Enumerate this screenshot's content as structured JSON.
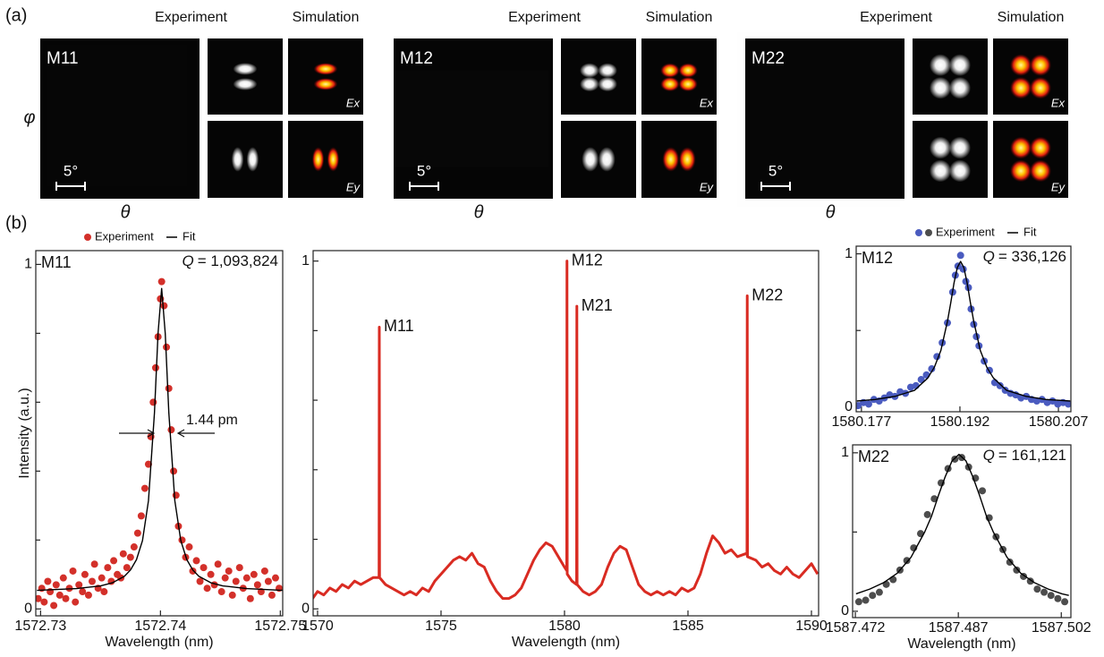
{
  "panel_a": {
    "label": "(a)",
    "y_label": "φ",
    "groups": [
      {
        "mode": "M11",
        "experiment": "Experiment",
        "simulation": "Simulation",
        "ex": "Ex",
        "ey": "Ey",
        "scale": "5°",
        "x_label": "θ"
      },
      {
        "mode": "M12",
        "experiment": "Experiment",
        "simulation": "Simulation",
        "ex": "Ex",
        "ey": "Ey",
        "scale": "5°",
        "x_label": "θ"
      },
      {
        "mode": "M22",
        "experiment": "Experiment",
        "simulation": "Simulation",
        "ex": "Ex",
        "ey": "Ey",
        "scale": "5°",
        "x_label": "θ"
      }
    ]
  },
  "panel_b_label": "(b)",
  "chart_data": [
    {
      "type": "scatter",
      "panel_label": "M11",
      "q_symbol": "Q",
      "q_text": "= 1,093,824",
      "width_label": "1.44 pm",
      "y_label": "Intensity (a.u.)",
      "x_label": "Wavelength (nm)",
      "xlim": [
        1572.7296,
        1572.7502
      ],
      "xticks": [
        1572.73,
        1572.74,
        1572.75
      ],
      "ylim": [
        -0.02,
        1.04
      ],
      "yticks": [
        0,
        1
      ],
      "yminorticks": [
        0.2,
        0.4,
        0.6,
        0.8
      ],
      "legend": "top",
      "series": [
        {
          "name": "Experiment",
          "type": "scatter",
          "color": "#d3302a",
          "x": [
            1572.7298,
            1572.7301,
            1572.7303,
            1572.7306,
            1572.7308,
            1572.7311,
            1572.7313,
            1572.7316,
            1572.7319,
            1572.7321,
            1572.7324,
            1572.7327,
            1572.7329,
            1572.7332,
            1572.7335,
            1572.7337,
            1572.734,
            1572.7343,
            1572.7345,
            1572.7348,
            1572.7351,
            1572.7353,
            1572.7356,
            1572.7359,
            1572.7361,
            1572.7364,
            1572.7367,
            1572.7369,
            1572.7372,
            1572.7375,
            1572.7378,
            1572.7381,
            1572.7384,
            1572.7387,
            1572.739,
            1572.7392,
            1572.7394,
            1572.7396,
            1572.7398,
            1572.74,
            1572.7401,
            1572.7403,
            1572.7405,
            1572.7407,
            1572.7409,
            1572.7411,
            1572.7413,
            1572.7415,
            1572.7418,
            1572.7421,
            1572.7424,
            1572.7427,
            1572.743,
            1572.7433,
            1572.7436,
            1572.7439,
            1572.7442,
            1572.7445,
            1572.7448,
            1572.7451,
            1572.7454,
            1572.7457,
            1572.746,
            1572.7463,
            1572.7466,
            1572.7469,
            1572.7472,
            1572.7475,
            1572.7478,
            1572.7481,
            1572.7484,
            1572.7487,
            1572.749,
            1572.7493,
            1572.7496,
            1572.7499
          ],
          "values": [
            0.03,
            0.06,
            0.02,
            0.08,
            0.05,
            0.01,
            0.07,
            0.04,
            0.09,
            0.03,
            0.06,
            0.11,
            0.02,
            0.07,
            0.05,
            0.1,
            0.04,
            0.08,
            0.13,
            0.06,
            0.09,
            0.05,
            0.12,
            0.08,
            0.14,
            0.1,
            0.09,
            0.16,
            0.12,
            0.15,
            0.18,
            0.22,
            0.27,
            0.35,
            0.42,
            0.5,
            0.6,
            0.7,
            0.79,
            0.9,
            0.95,
            0.88,
            0.76,
            0.64,
            0.52,
            0.4,
            0.33,
            0.24,
            0.2,
            0.15,
            0.18,
            0.11,
            0.14,
            0.08,
            0.12,
            0.06,
            0.1,
            0.07,
            0.13,
            0.05,
            0.09,
            0.11,
            0.04,
            0.08,
            0.12,
            0.06,
            0.09,
            0.03,
            0.1,
            0.07,
            0.05,
            0.11,
            0.08,
            0.04,
            0.09,
            0.06
          ]
        },
        {
          "name": "Fit",
          "type": "line",
          "color": "#000000",
          "x": [
            1572.7297,
            1572.733,
            1572.735,
            1572.736,
            1572.737,
            1572.7375,
            1572.738,
            1572.7385,
            1572.739,
            1572.7395,
            1572.7398,
            1572.7401,
            1572.7404,
            1572.7407,
            1572.7412,
            1572.7417,
            1572.7422,
            1572.7427,
            1572.7432,
            1572.7442,
            1572.7452,
            1572.7472,
            1572.7502
          ],
          "values": [
            0.054,
            0.059,
            0.067,
            0.076,
            0.095,
            0.113,
            0.143,
            0.198,
            0.314,
            0.569,
            0.8,
            0.93,
            0.8,
            0.569,
            0.314,
            0.198,
            0.143,
            0.113,
            0.095,
            0.076,
            0.067,
            0.059,
            0.054
          ]
        }
      ]
    },
    {
      "type": "line",
      "x_label": "Wavelength (nm)",
      "xlim": [
        1569.82,
        1590.29
      ],
      "xticks": [
        1570,
        1575,
        1580,
        1585,
        1590
      ],
      "ylim": [
        -0.02,
        1.03
      ],
      "yticks": [
        0,
        1
      ],
      "yminorticks": [
        0.2,
        0.4,
        0.6,
        0.8
      ],
      "annotations": [
        {
          "text": "M11",
          "x": 1572.5,
          "y": 0.81
        },
        {
          "text": "M12",
          "x": 1580.1,
          "y": 1.0
        },
        {
          "text": "M21",
          "x": 1580.5,
          "y": 0.87
        },
        {
          "text": "M22",
          "x": 1587.4,
          "y": 0.9
        }
      ],
      "series": [
        {
          "type": "line",
          "color": "#d92b22",
          "x": [
            1569.8,
            1570.0,
            1570.25,
            1570.5,
            1570.75,
            1571.0,
            1571.25,
            1571.5,
            1571.75,
            1572.0,
            1572.25,
            1572.49,
            1572.5,
            1572.51,
            1572.75,
            1573.0,
            1573.25,
            1573.5,
            1573.75,
            1574.0,
            1574.25,
            1574.5,
            1574.75,
            1575.0,
            1575.25,
            1575.5,
            1575.75,
            1576.0,
            1576.25,
            1576.5,
            1576.75,
            1577.0,
            1577.25,
            1577.5,
            1577.75,
            1578.0,
            1578.25,
            1578.5,
            1578.75,
            1579.0,
            1579.25,
            1579.5,
            1579.75,
            1580.0,
            1580.09,
            1580.1,
            1580.11,
            1580.3,
            1580.49,
            1580.5,
            1580.51,
            1580.75,
            1581.0,
            1581.25,
            1581.5,
            1581.75,
            1582.0,
            1582.25,
            1582.5,
            1582.75,
            1583.0,
            1583.25,
            1583.5,
            1583.75,
            1584.0,
            1584.25,
            1584.5,
            1584.75,
            1585.0,
            1585.25,
            1585.5,
            1585.75,
            1586.0,
            1586.25,
            1586.5,
            1586.75,
            1587.0,
            1587.39,
            1587.4,
            1587.41,
            1587.75,
            1588.0,
            1588.25,
            1588.5,
            1588.75,
            1589.0,
            1589.25,
            1589.5,
            1589.75,
            1590.0,
            1590.25
          ],
          "values": [
            0.03,
            0.05,
            0.04,
            0.06,
            0.05,
            0.07,
            0.06,
            0.08,
            0.07,
            0.08,
            0.09,
            0.09,
            0.81,
            0.09,
            0.07,
            0.06,
            0.05,
            0.04,
            0.05,
            0.04,
            0.06,
            0.05,
            0.08,
            0.1,
            0.12,
            0.14,
            0.15,
            0.14,
            0.16,
            0.13,
            0.12,
            0.08,
            0.05,
            0.03,
            0.03,
            0.04,
            0.06,
            0.1,
            0.14,
            0.17,
            0.19,
            0.18,
            0.15,
            0.12,
            0.11,
            1.0,
            0.1,
            0.08,
            0.07,
            0.87,
            0.07,
            0.05,
            0.04,
            0.05,
            0.07,
            0.12,
            0.16,
            0.18,
            0.17,
            0.12,
            0.07,
            0.05,
            0.04,
            0.05,
            0.04,
            0.05,
            0.04,
            0.06,
            0.05,
            0.06,
            0.1,
            0.16,
            0.21,
            0.19,
            0.16,
            0.17,
            0.15,
            0.16,
            0.9,
            0.15,
            0.14,
            0.12,
            0.13,
            0.11,
            0.1,
            0.12,
            0.1,
            0.09,
            0.11,
            0.13,
            0.1
          ]
        }
      ]
    },
    {
      "type": "scatter",
      "panel_label": "M12",
      "q_symbol": "Q",
      "q_text": "= 336,126",
      "xlim": [
        1580.1762,
        1580.2089
      ],
      "xticks": [
        1580.177,
        1580.192,
        1580.207
      ],
      "ylim": [
        -0.03,
        1.05
      ],
      "yticks": [
        0,
        1
      ],
      "yminorticks": [
        0.5
      ],
      "legend": "top",
      "series": [
        {
          "name": "Experiment",
          "type": "scatter",
          "color": "#4a5bbf",
          "x": [
            1580.1765,
            1580.1773,
            1580.1781,
            1580.1789,
            1580.1797,
            1580.1805,
            1580.1813,
            1580.1821,
            1580.1829,
            1580.1837,
            1580.1845,
            1580.1853,
            1580.1861,
            1580.1869,
            1580.1877,
            1580.1885,
            1580.1893,
            1580.1901,
            1580.1909,
            1580.1913,
            1580.1917,
            1580.1921,
            1580.1925,
            1580.1929,
            1580.1933,
            1580.1937,
            1580.1941,
            1580.1945,
            1580.1949,
            1580.1957,
            1580.1965,
            1580.1973,
            1580.1981,
            1580.1989,
            1580.1997,
            1580.2005,
            1580.2013,
            1580.2021,
            1580.2029,
            1580.2037,
            1580.2045,
            1580.2053,
            1580.2061,
            1580.2069,
            1580.2077,
            1580.2085
          ],
          "values": [
            0.01,
            0.03,
            0.02,
            0.05,
            0.04,
            0.06,
            0.08,
            0.07,
            0.1,
            0.09,
            0.13,
            0.14,
            0.18,
            0.21,
            0.25,
            0.33,
            0.42,
            0.55,
            0.75,
            0.86,
            0.92,
            0.99,
            0.9,
            0.82,
            0.78,
            0.64,
            0.54,
            0.46,
            0.4,
            0.3,
            0.24,
            0.16,
            0.14,
            0.11,
            0.09,
            0.08,
            0.06,
            0.07,
            0.05,
            0.04,
            0.05,
            0.03,
            0.04,
            0.02,
            0.03,
            0.02
          ]
        },
        {
          "name": "Fit",
          "type": "line",
          "color": "#000000",
          "x": [
            1580.1763,
            1580.1791,
            1580.1821,
            1580.1851,
            1580.1871,
            1580.1881,
            1580.1891,
            1580.1901,
            1580.1906,
            1580.1911,
            1580.1916,
            1580.1921,
            1580.1926,
            1580.1931,
            1580.1936,
            1580.1941,
            1580.1951,
            1580.1961,
            1580.1971,
            1580.1991,
            1580.2021,
            1580.2051,
            1580.2088
          ],
          "values": [
            0.04,
            0.05,
            0.07,
            0.11,
            0.19,
            0.26,
            0.37,
            0.56,
            0.68,
            0.81,
            0.91,
            0.95,
            0.91,
            0.81,
            0.68,
            0.56,
            0.37,
            0.26,
            0.19,
            0.11,
            0.07,
            0.05,
            0.04
          ]
        }
      ]
    },
    {
      "type": "scatter",
      "panel_label": "M22",
      "q_symbol": "Q",
      "q_text": "= 161,121",
      "x_label": "Wavelength (nm)",
      "xlim": [
        1587.4716,
        1587.5034
      ],
      "xticks": [
        1587.472,
        1587.487,
        1587.502
      ],
      "ylim": [
        -0.04,
        1.05
      ],
      "yticks": [
        0,
        1
      ],
      "yminorticks": [
        0.5
      ],
      "series": [
        {
          "type": "scatter",
          "color": "#4d4d4d",
          "x": [
            1587.4725,
            1587.4735,
            1587.4745,
            1587.4755,
            1587.4765,
            1587.4775,
            1587.4785,
            1587.4795,
            1587.4805,
            1587.4815,
            1587.4825,
            1587.4835,
            1587.4845,
            1587.4855,
            1587.4865,
            1587.4875,
            1587.4885,
            1587.4895,
            1587.4905,
            1587.4915,
            1587.4925,
            1587.4935,
            1587.4945,
            1587.4955,
            1587.4965,
            1587.4975,
            1587.4985,
            1587.4995,
            1587.5005,
            1587.5015,
            1587.5025
          ],
          "values": [
            0.06,
            0.07,
            0.1,
            0.12,
            0.17,
            0.2,
            0.26,
            0.32,
            0.4,
            0.49,
            0.61,
            0.71,
            0.81,
            0.9,
            0.96,
            0.97,
            0.91,
            0.84,
            0.76,
            0.59,
            0.47,
            0.39,
            0.31,
            0.26,
            0.22,
            0.19,
            0.14,
            0.12,
            0.1,
            0.08,
            0.06
          ]
        },
        {
          "type": "line",
          "color": "#000000",
          "x": [
            1587.4721,
            1587.4741,
            1587.4761,
            1587.4781,
            1587.4801,
            1587.4821,
            1587.4831,
            1587.4841,
            1587.4851,
            1587.4861,
            1587.4871,
            1587.4881,
            1587.4891,
            1587.4901,
            1587.4911,
            1587.4921,
            1587.4941,
            1587.4961,
            1587.4981,
            1587.5001,
            1587.5021,
            1587.5031
          ],
          "values": [
            0.11,
            0.14,
            0.18,
            0.24,
            0.34,
            0.5,
            0.6,
            0.73,
            0.85,
            0.95,
            0.99,
            0.95,
            0.85,
            0.73,
            0.6,
            0.5,
            0.34,
            0.24,
            0.18,
            0.14,
            0.11,
            0.1
          ]
        }
      ]
    }
  ]
}
